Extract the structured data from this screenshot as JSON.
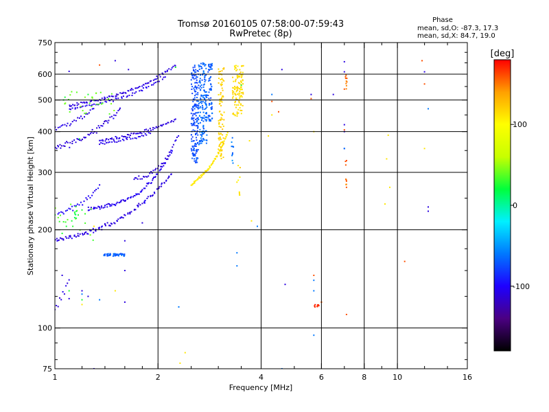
{
  "chart_data": {
    "type": "scatter",
    "title": "Tromsø 20160105 07:58:00-07:59:43",
    "subtitle": "RwPretec (8p)",
    "phase_info": {
      "label": "Phase",
      "line_o": "mean, sd,O: -87.3, 17.3",
      "line_x": "mean, sd,X: 84.7, 19.0"
    },
    "xlabel": "Frequency [MHz]",
    "ylabel": "Stationary phase Virtual Height [km]",
    "x_scale": "log",
    "y_scale": "log",
    "xlim": [
      1,
      16
    ],
    "ylim": [
      75,
      750
    ],
    "x_ticks": [
      {
        "value": 1,
        "label": "1"
      },
      {
        "value": 2,
        "label": "2"
      },
      {
        "value": 4,
        "label": "4"
      },
      {
        "value": 6,
        "label": "6"
      },
      {
        "value": 8,
        "label": "8"
      },
      {
        "value": 10,
        "label": "10"
      },
      {
        "value": 16,
        "label": "16"
      }
    ],
    "y_ticks": [
      {
        "value": 75,
        "label": "75"
      },
      {
        "value": 100,
        "label": "100"
      },
      {
        "value": 200,
        "label": "200"
      },
      {
        "value": 300,
        "label": "300"
      },
      {
        "value": 400,
        "label": "400"
      },
      {
        "value": 500,
        "label": "500"
      },
      {
        "value": 600,
        "label": "600"
      },
      {
        "value": 750,
        "label": "750"
      }
    ],
    "x_gridlines": [
      2,
      4,
      6,
      8,
      10,
      16
    ],
    "y_gridlines": [
      100,
      200,
      300,
      400,
      500,
      600
    ],
    "x_minor_ticks": [
      1.2,
      1.4,
      1.6,
      1.8,
      2.5,
      3,
      3.5,
      5,
      7,
      9,
      12,
      14
    ],
    "y_minor_ticks": [
      80,
      90,
      125,
      150,
      175,
      250,
      350,
      450,
      550,
      650,
      700
    ],
    "grid": true,
    "colorbar": {
      "label": "[deg]",
      "range": [
        -180,
        180
      ],
      "ticks": [
        {
          "value": 100,
          "label": "100"
        },
        {
          "value": 0,
          "label": "0"
        },
        {
          "value": -100,
          "label": "-100"
        }
      ],
      "colors": [
        "#000000",
        "#4b0082",
        "#1e00ff",
        "#0078ff",
        "#00f0ff",
        "#00ff3c",
        "#c8ff00",
        "#ffff00",
        "#ffa000",
        "#ff0000"
      ]
    },
    "series": [
      {
        "kind": "curve",
        "from": [
          1.0,
          185
        ],
        "to": [
          2.2,
          300
        ],
        "curvature": 0.4,
        "n": 110,
        "spread": 0.02,
        "phase": -110
      },
      {
        "kind": "curve",
        "from": [
          1.25,
          232
        ],
        "to": [
          2.2,
          350
        ],
        "curvature": 0.55,
        "n": 90,
        "spread": 0.016,
        "phase": -105
      },
      {
        "kind": "curve",
        "from": [
          1.02,
          222
        ],
        "to": [
          1.35,
          270
        ],
        "curvature": 0.2,
        "n": 28,
        "spread": 0.025,
        "phase": -100
      },
      {
        "kind": "curve",
        "from": [
          1.7,
          285
        ],
        "to": [
          2.3,
          395
        ],
        "curvature": 0.5,
        "n": 35,
        "spread": 0.02,
        "phase": -110
      },
      {
        "kind": "curve",
        "from": [
          1.0,
          355
        ],
        "to": [
          1.55,
          470
        ],
        "curvature": 0.3,
        "n": 55,
        "spread": 0.03,
        "phase": -110
      },
      {
        "kind": "curve",
        "from": [
          1.1,
          480
        ],
        "to": [
          2.25,
          640
        ],
        "curvature": 0.35,
        "n": 85,
        "spread": 0.012,
        "phase": -110
      },
      {
        "kind": "curve",
        "from": [
          1.1,
          470
        ],
        "to": [
          2.1,
          590
        ],
        "curvature": 0.35,
        "n": 55,
        "spread": 0.012,
        "phase": -105
      },
      {
        "kind": "curve",
        "from": [
          1.35,
          375
        ],
        "to": [
          2.25,
          435
        ],
        "curvature": 0.25,
        "n": 60,
        "spread": 0.012,
        "phase": -110
      },
      {
        "kind": "curve",
        "from": [
          1.0,
          408
        ],
        "to": [
          1.3,
          470
        ],
        "curvature": 0.2,
        "n": 25,
        "spread": 0.02,
        "phase": -108
      },
      {
        "kind": "curve",
        "from": [
          1.35,
          368
        ],
        "to": [
          1.9,
          395
        ],
        "curvature": 0.2,
        "n": 30,
        "spread": 0.012,
        "phase": -105
      },
      {
        "kind": "curve",
        "from": [
          1.0,
          115
        ],
        "to": [
          1.1,
          140
        ],
        "curvature": 0.1,
        "n": 10,
        "spread": 0.03,
        "phase": -110
      },
      {
        "kind": "band",
        "x": [
          2.5,
          2.62
        ],
        "y": [
          320,
          640
        ],
        "n": 170,
        "phase": -75
      },
      {
        "kind": "band",
        "x": [
          2.62,
          2.78
        ],
        "y": [
          365,
          650
        ],
        "n": 160,
        "phase": -65
      },
      {
        "kind": "band",
        "x": [
          2.8,
          2.88
        ],
        "y": [
          430,
          650
        ],
        "n": 60,
        "phase": -70
      },
      {
        "kind": "curve",
        "from": [
          2.5,
          275
        ],
        "to": [
          3.2,
          400
        ],
        "curvature": 0.3,
        "n": 70,
        "spread": 0.014,
        "phase": 110
      },
      {
        "kind": "band",
        "x": [
          3.0,
          3.12
        ],
        "y": [
          330,
          640
        ],
        "n": 95,
        "phase": 120
      },
      {
        "kind": "band",
        "x": [
          3.3,
          3.55
        ],
        "y": [
          445,
          640
        ],
        "n": 115,
        "phase": 115
      },
      {
        "kind": "band",
        "x": [
          1.38,
          1.6
        ],
        "y": [
          166,
          169
        ],
        "n": 45,
        "phase": -70
      },
      {
        "kind": "band",
        "x": [
          1.14,
          1.16
        ],
        "y": [
          217,
          232
        ],
        "n": 6,
        "phase": 20
      },
      {
        "kind": "band",
        "x": [
          3.28,
          3.32
        ],
        "y": [
          320,
          390
        ],
        "n": 10,
        "phase": -60
      },
      {
        "kind": "band",
        "x": [
          3.42,
          3.48
        ],
        "y": [
          255,
          320
        ],
        "n": 8,
        "phase": 110
      },
      {
        "kind": "band",
        "x": [
          1.05,
          1.5
        ],
        "y": [
          450,
          530
        ],
        "n": 30,
        "phase": 40
      },
      {
        "kind": "band",
        "x": [
          1.0,
          1.3
        ],
        "y": [
          180,
          240
        ],
        "n": 20,
        "phase": 35
      },
      {
        "kind": "band",
        "x": [
          5.72,
          5.9
        ],
        "y": [
          116,
          118
        ],
        "n": 12,
        "phase": 170
      },
      {
        "kind": "band",
        "x": [
          7.05,
          7.12
        ],
        "y": [
          540,
          600
        ],
        "n": 10,
        "phase": 150
      },
      {
        "kind": "band",
        "x": [
          7.05,
          7.12
        ],
        "y": [
          275,
          290
        ],
        "n": 4,
        "phase": 155
      },
      {
        "kind": "band",
        "x": [
          7.05,
          7.12
        ],
        "y": [
          310,
          330
        ],
        "n": 3,
        "phase": 160
      },
      {
        "kind": "points",
        "phase": -110,
        "pts": [
          [
            1.1,
            612
          ],
          [
            1.5,
            660
          ],
          [
            1.64,
            620
          ],
          [
            1.6,
            120
          ],
          [
            1.6,
            150
          ],
          [
            1.6,
            185
          ],
          [
            1.8,
            210
          ],
          [
            4.6,
            620
          ],
          [
            4.7,
            136
          ],
          [
            5.6,
            520
          ],
          [
            6.5,
            520
          ],
          [
            7.0,
            655
          ],
          [
            7.0,
            610
          ],
          [
            7.0,
            420
          ],
          [
            7.0,
            355
          ],
          [
            7.0,
            400
          ],
          [
            12.3,
            235
          ],
          [
            12.3,
            228
          ],
          [
            12.0,
            610
          ],
          [
            1.05,
            145
          ],
          [
            1.2,
            130
          ],
          [
            1.1,
            123
          ],
          [
            1.25,
            125
          ],
          [
            1.3,
            75
          ]
        ]
      },
      {
        "kind": "points",
        "phase": -60,
        "pts": [
          [
            2.3,
            116
          ],
          [
            3.9,
            205
          ],
          [
            4.6,
            75
          ],
          [
            5.7,
            140
          ],
          [
            5.7,
            130
          ],
          [
            5.7,
            95
          ],
          [
            7.0,
            355
          ],
          [
            12.3,
            470
          ],
          [
            3.4,
            170
          ],
          [
            3.4,
            155
          ],
          [
            4.3,
            520
          ],
          [
            1.2,
            127
          ],
          [
            1.35,
            122
          ]
        ]
      },
      {
        "kind": "points",
        "phase": 110,
        "pts": [
          [
            2.32,
            78
          ],
          [
            2.4,
            84
          ],
          [
            3.4,
            280
          ],
          [
            4.2,
            388
          ],
          [
            4.3,
            450
          ],
          [
            5.7,
            400
          ],
          [
            6.0,
            120
          ],
          [
            9.2,
            240
          ],
          [
            9.5,
            270
          ],
          [
            9.4,
            390
          ],
          [
            9.3,
            330
          ],
          [
            12.0,
            355
          ],
          [
            1.2,
            118
          ],
          [
            1.3,
            205
          ],
          [
            1.5,
            130
          ],
          [
            3.7,
            375
          ],
          [
            3.75,
            213
          ]
        ]
      },
      {
        "kind": "points",
        "phase": 160,
        "pts": [
          [
            1.35,
            640
          ],
          [
            4.3,
            495
          ],
          [
            4.5,
            460
          ],
          [
            5.6,
            505
          ],
          [
            5.7,
            145
          ],
          [
            6.0,
            120
          ],
          [
            7.1,
            110
          ],
          [
            7.0,
            540
          ],
          [
            7.0,
            405
          ],
          [
            7.1,
            270
          ],
          [
            7.1,
            282
          ],
          [
            10.5,
            160
          ],
          [
            11.8,
            660
          ],
          [
            12.0,
            560
          ]
        ]
      },
      {
        "kind": "points",
        "phase": 25,
        "pts": [
          [
            1.07,
            510
          ],
          [
            1.06,
            500
          ],
          [
            1.25,
            520
          ],
          [
            1.18,
            380
          ],
          [
            1.2,
            230
          ],
          [
            1.17,
            222
          ],
          [
            1.12,
            213
          ],
          [
            1.08,
            205
          ],
          [
            1.05,
            195
          ],
          [
            1.2,
            122
          ],
          [
            1.1,
            130
          ],
          [
            2.25,
            630
          ],
          [
            3.5,
            555
          ]
        ]
      }
    ]
  }
}
